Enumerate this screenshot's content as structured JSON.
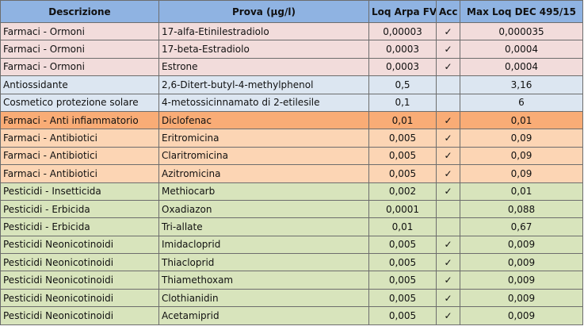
{
  "headers": {
    "descrizione": "Descrizione",
    "prova": "Prova (µg/l)",
    "loq_arpa": "Loq Arpa FVG",
    "acc": "Acc",
    "max_loq": "Max Loq DEC 495/15"
  },
  "group_colors": {
    "header": "#8fb3e2",
    "pink": "#f2dcdb",
    "blue": "#dce6f1",
    "orange": "#fcd5b4",
    "orange_dark": "#f9ac76",
    "green": "#d8e4bc"
  },
  "rows": [
    {
      "group": "pink",
      "descrizione": "Farmaci - Ormoni",
      "prova": "17-alfa-Etinilestradiolo",
      "loq": "0,00003",
      "acc": "✓",
      "max": "0,000035"
    },
    {
      "group": "pink",
      "descrizione": "Farmaci - Ormoni",
      "prova": "17-beta-Estradiolo",
      "loq": "0,0003",
      "acc": "✓",
      "max": "0,0004"
    },
    {
      "group": "pink",
      "descrizione": "Farmaci - Ormoni",
      "prova": "Estrone",
      "loq": "0,0003",
      "acc": "✓",
      "max": "0,0004"
    },
    {
      "group": "blue",
      "descrizione": "Antiossidante",
      "prova": "2,6-Ditert-butyl-4-methylphenol",
      "loq": "0,5",
      "acc": "",
      "max": "3,16"
    },
    {
      "group": "blue",
      "descrizione": "Cosmetico protezione solare",
      "prova": "4-metossicinnamato di 2-etilesile",
      "loq": "0,1",
      "acc": "",
      "max": "6"
    },
    {
      "group": "orange_dark",
      "descrizione": "Farmaci - Anti infiammatorio",
      "prova": "Diclofenac",
      "loq": "0,01",
      "acc": "✓",
      "max": "0,01"
    },
    {
      "group": "orange",
      "descrizione": "Farmaci - Antibiotici",
      "prova": "Eritromicina",
      "loq": "0,005",
      "acc": "✓",
      "max": "0,09"
    },
    {
      "group": "orange",
      "descrizione": "Farmaci - Antibiotici",
      "prova": "Claritromicina",
      "loq": "0,005",
      "acc": "✓",
      "max": "0,09"
    },
    {
      "group": "orange",
      "descrizione": "Farmaci - Antibiotici",
      "prova": "Azitromicina",
      "loq": "0,005",
      "acc": "✓",
      "max": "0,09"
    },
    {
      "group": "green",
      "descrizione": "Pesticidi - Insetticida",
      "prova": "Methiocarb",
      "loq": "0,002",
      "acc": "✓",
      "max": "0,01"
    },
    {
      "group": "green",
      "descrizione": "Pesticidi - Erbicida",
      "prova": "Oxadiazon",
      "loq": "0,0001",
      "acc": "",
      "max": "0,088"
    },
    {
      "group": "green",
      "descrizione": "Pesticidi - Erbicida",
      "prova": "Tri-allate",
      "loq": "0,01",
      "acc": "",
      "max": "0,67"
    },
    {
      "group": "green",
      "descrizione": "Pesticidi Neonicotinoidi",
      "prova": "Imidacloprid",
      "loq": "0,005",
      "acc": "✓",
      "max": "0,009"
    },
    {
      "group": "green",
      "descrizione": "Pesticidi Neonicotinoidi",
      "prova": "Thiacloprid",
      "loq": "0,005",
      "acc": "✓",
      "max": "0,009"
    },
    {
      "group": "green",
      "descrizione": "Pesticidi Neonicotinoidi",
      "prova": "Thiamethoxam",
      "loq": "0,005",
      "acc": "✓",
      "max": "0,009"
    },
    {
      "group": "green",
      "descrizione": "Pesticidi Neonicotinoidi",
      "prova": "Clothianidin",
      "loq": "0,005",
      "acc": "✓",
      "max": "0,009"
    },
    {
      "group": "green",
      "descrizione": "Pesticidi Neonicotinoidi",
      "prova": "Acetamiprid",
      "loq": "0,005",
      "acc": "✓",
      "max": "0,009"
    }
  ]
}
